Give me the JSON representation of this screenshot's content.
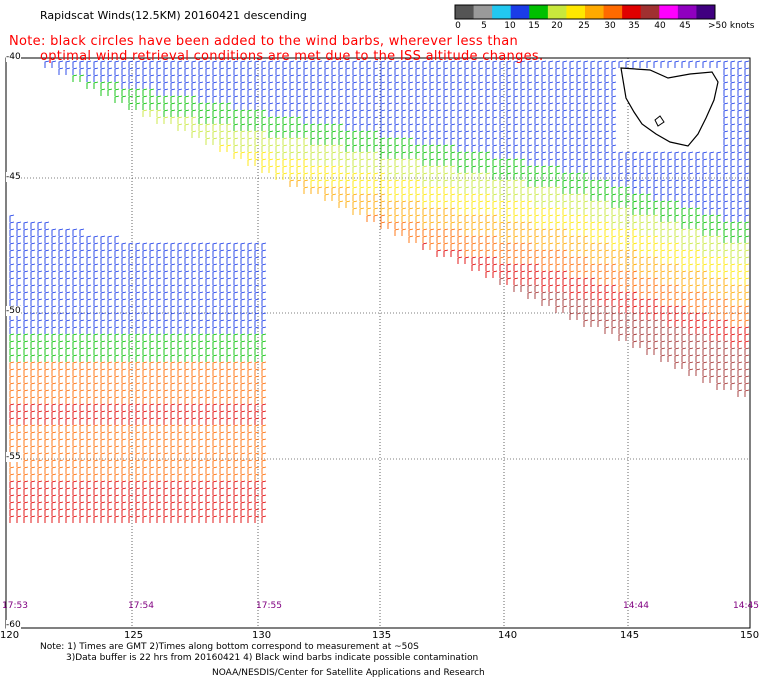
{
  "title": "Rapidscat Winds(12.5KM) 20160421 descending",
  "note_line1": "Note: black circles have been added to the wind barbs, wherever less than",
  "note_line2": "optimal wind retrieval conditions are met due to the ISS altitude changes.",
  "color_scale": {
    "labels": [
      "0",
      "5",
      "10",
      "15",
      "20",
      "25",
      "30",
      "35",
      "40",
      "45",
      ">50 knots"
    ],
    "colors": [
      "#555555",
      "#9a9a9a",
      "#22c8f0",
      "#1a3ce8",
      "#00c000",
      "#c8e83c",
      "#ffe800",
      "#ffaa00",
      "#ff6a00",
      "#e00000",
      "#a03030",
      "#ff00ff",
      "#9000c0",
      "#400080"
    ]
  },
  "lat_labels": [
    "-40",
    "-45",
    "-50",
    "-55",
    "-60"
  ],
  "lon_labels": [
    "120",
    "125",
    "130",
    "135",
    "140",
    "145",
    "150"
  ],
  "times": [
    {
      "label": "17:53",
      "color": "#800080"
    },
    {
      "label": "17:54",
      "color": "#800080"
    },
    {
      "label": "17:55",
      "color": "#800080"
    },
    {
      "label": "14:44",
      "color": "#800080"
    },
    {
      "label": "14:45",
      "color": "#800080"
    }
  ],
  "footer": {
    "line1": "Note: 1) Times are GMT 2)Times along bottom correspond to measurement at ~50S",
    "line2": "3)Data buffer is 22 hrs from 20160421 4) Black wind barbs indicate possible contamination",
    "line3": "NOAA/NESDIS/Center for Satellite Applications and Research"
  }
}
